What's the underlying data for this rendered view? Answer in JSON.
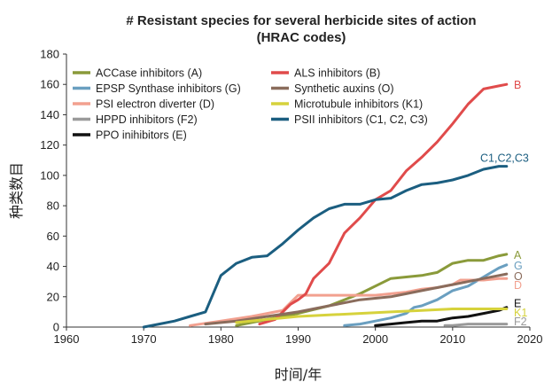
{
  "chart_data": {
    "type": "line",
    "title": "# Resistant species for several herbicide sites of action",
    "subtitle": "(HRAC codes)",
    "xlabel": "时间/年",
    "ylabel": "种类数目",
    "xlim": [
      1960,
      2020
    ],
    "ylim": [
      0,
      180
    ],
    "xticks": [
      "1960",
      "1970",
      "1980",
      "1990",
      "2000",
      "2010",
      "2020"
    ],
    "yticks": [
      "0",
      "20",
      "40",
      "60",
      "80",
      "100",
      "120",
      "140",
      "160",
      "180"
    ],
    "grid": false,
    "legend_position": "top-left",
    "series": [
      {
        "name": "ACCase inhibitors (A)",
        "end_label": "A",
        "color": "#8a9a3a",
        "x": [
          1982,
          1986,
          1990,
          1994,
          1998,
          2002,
          2004,
          2006,
          2008,
          2010,
          2012,
          2014,
          2016,
          2017
        ],
        "y": [
          1,
          5,
          9,
          14,
          22,
          32,
          33,
          34,
          36,
          42,
          44,
          44,
          47,
          48
        ]
      },
      {
        "name": "EPSP Synthase inhibitors (G)",
        "end_label": "G",
        "color": "#6a9fc0",
        "x": [
          1996,
          1998,
          2000,
          2002,
          2004,
          2005,
          2006,
          2008,
          2010,
          2012,
          2014,
          2016,
          2017
        ],
        "y": [
          1,
          2,
          4,
          6,
          9,
          13,
          14,
          18,
          24,
          27,
          33,
          39,
          41
        ]
      },
      {
        "name": "PSI electron diverter (D)",
        "end_label": "D",
        "color": "#f2a08f",
        "x": [
          1976,
          1980,
          1984,
          1986,
          1988,
          1989,
          1990,
          1992,
          1994,
          1996,
          1998,
          2000,
          2002,
          2004,
          2006,
          2008,
          2010,
          2011,
          2012,
          2014,
          2016,
          2017
        ],
        "y": [
          1,
          4,
          7,
          9,
          11,
          16,
          21,
          21,
          21,
          21,
          21,
          21,
          22,
          23,
          25,
          26,
          28,
          31,
          31,
          31,
          32,
          32
        ]
      },
      {
        "name": "HPPD inhibitors (F2)",
        "end_label": "F2",
        "color": "#9a9a9a",
        "x": [
          2009,
          2010,
          2012,
          2014,
          2016,
          2017
        ],
        "y": [
          1,
          1,
          2,
          2,
          2,
          2
        ]
      },
      {
        "name": "PPO inihibitors (E)",
        "end_label": "E",
        "color": "#111111",
        "x": [
          2000,
          2002,
          2004,
          2006,
          2008,
          2009,
          2010,
          2012,
          2014,
          2016,
          2017
        ],
        "y": [
          1,
          2,
          3,
          4,
          4,
          5,
          6,
          7,
          9,
          11,
          13
        ]
      },
      {
        "name": "ALS inhibitors (B)",
        "end_label": "B",
        "color": "#e04b4b",
        "x": [
          1985,
          1987,
          1988,
          1989,
          1990,
          1991,
          1992,
          1994,
          1996,
          1998,
          2000,
          2002,
          2004,
          2006,
          2008,
          2010,
          2012,
          2014,
          2016,
          2017
        ],
        "y": [
          2,
          5,
          10,
          15,
          18,
          22,
          32,
          42,
          62,
          72,
          84,
          90,
          103,
          112,
          122,
          134,
          147,
          157,
          159,
          160
        ]
      },
      {
        "name": "Synthetic auxins (O)",
        "end_label": "O",
        "color": "#8a6c5c",
        "x": [
          1978,
          1982,
          1986,
          1990,
          1994,
          1998,
          2002,
          2004,
          2006,
          2008,
          2010,
          2012,
          2014,
          2016,
          2017
        ],
        "y": [
          2,
          4,
          7,
          10,
          14,
          18,
          20,
          22,
          24,
          26,
          28,
          30,
          32,
          34,
          35
        ]
      },
      {
        "name": "Microtubule inhibitors (K1)",
        "end_label": "K1",
        "color": "#d6d23c",
        "x": [
          1982,
          1986,
          1990,
          1994,
          1998,
          2002,
          2006,
          2010,
          2014,
          2017
        ],
        "y": [
          3,
          5,
          7,
          8,
          9,
          10,
          11,
          12,
          12,
          12
        ]
      },
      {
        "name": "PSII inhibitors (C1, C2, C3)",
        "end_label": "C1,C2,C3",
        "color": "#1b5e80",
        "x": [
          1970,
          1972,
          1974,
          1976,
          1978,
          1980,
          1982,
          1984,
          1986,
          1988,
          1990,
          1992,
          1994,
          1996,
          1998,
          2000,
          2002,
          2004,
          2006,
          2008,
          2010,
          2012,
          2014,
          2016,
          2017
        ],
        "y": [
          0,
          2,
          4,
          7,
          10,
          34,
          42,
          46,
          47,
          55,
          64,
          72,
          78,
          81,
          81,
          84,
          85,
          90,
          94,
          95,
          97,
          100,
          104,
          106,
          106
        ]
      }
    ]
  }
}
